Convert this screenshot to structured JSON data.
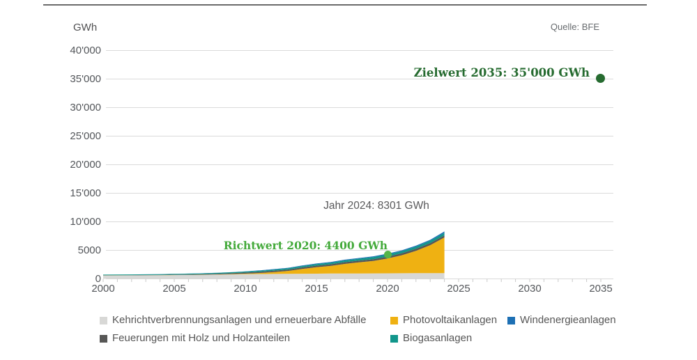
{
  "header": {
    "unit_label": "GWh",
    "source_label": "Quelle: BFE"
  },
  "annotations": {
    "zielwert": {
      "text": "Zielwert 2035: 35'000 GWh",
      "year": 2035,
      "value_gwh": 35000,
      "text_color": "#266b30",
      "dot_color": "#266b30"
    },
    "jahr_2024": {
      "text": "Jahr 2024: 8301 GWh",
      "year": 2024,
      "value_gwh": 8301,
      "text_color": "#58585a"
    },
    "richtwert": {
      "text": "Richtwert 2020: 4400 GWh",
      "year": 2020,
      "value_gwh": 4400,
      "text_color": "#44aa3b",
      "dot_color": "#56b54a"
    }
  },
  "chart_data": {
    "type": "area",
    "stacked": true,
    "ylabel": "GWh",
    "x_years": [
      2000,
      2001,
      2002,
      2003,
      2004,
      2005,
      2006,
      2007,
      2008,
      2009,
      2010,
      2011,
      2012,
      2013,
      2014,
      2015,
      2016,
      2017,
      2018,
      2019,
      2020,
      2021,
      2022,
      2023,
      2024
    ],
    "series": [
      {
        "name": "Kehrichtverbrennungsanlagen und erneuerbare Abfälle",
        "color": "#d8d8d6",
        "values": [
          590,
          600,
          610,
          620,
          640,
          660,
          680,
          700,
          740,
          780,
          820,
          850,
          870,
          890,
          905,
          920,
          935,
          945,
          955,
          965,
          975,
          985,
          995,
          1005,
          1015
        ]
      },
      {
        "name": "Photovoltaikanlagen",
        "color": "#efb112",
        "values": [
          11,
          13,
          15,
          18,
          21,
          24,
          27,
          32,
          42,
          58,
          98,
          170,
          320,
          500,
          840,
          1119,
          1333,
          1683,
          1945,
          2173,
          2599,
          3146,
          3916,
          4898,
          6238
        ]
      },
      {
        "name": "Feuerungen mit Holz und Holzanteilen",
        "color": "#575756",
        "values": [
          30,
          32,
          35,
          40,
          48,
          58,
          75,
          95,
          120,
          155,
          190,
          215,
          235,
          250,
          262,
          275,
          287,
          297,
          307,
          317,
          327,
          340,
          352,
          362,
          372
        ]
      },
      {
        "name": "Biogasanlagen",
        "color": "#11968b",
        "values": [
          112,
          114,
          116,
          119,
          122,
          126,
          131,
          140,
          150,
          160,
          167,
          177,
          192,
          212,
          242,
          270,
          292,
          312,
          332,
          352,
          367,
          382,
          397,
          412,
          427
        ]
      },
      {
        "name": "Windenergieanlagen",
        "color": "#1d70b4",
        "values": [
          3,
          5,
          5,
          5,
          8,
          8,
          15,
          16,
          19,
          23,
          37,
          70,
          85,
          90,
          100,
          110,
          108,
          132,
          121,
          146,
          147,
          150,
          155,
          170,
          249
        ]
      }
    ],
    "x_axis": {
      "min": 2000,
      "max": 2035,
      "labeled_ticks": [
        2000,
        2005,
        2010,
        2015,
        2020,
        2025,
        2030,
        2035
      ],
      "minor_tick_every_year": true
    },
    "y_axis": {
      "min": 0,
      "max": 40000,
      "tick_step": 5000,
      "tick_labels": [
        "0",
        "5000",
        "10'000",
        "15'000",
        "20'000",
        "25'000",
        "30'000",
        "35'000",
        "40'000"
      ]
    },
    "grid": "horizontal",
    "grid_color": "#dadada",
    "legend_position": "bottom"
  },
  "legend": {
    "rows": [
      [
        {
          "label": "Kehrichtverbrennungsanlagen und erneuerbare Abfälle",
          "color": "#d8d8d6"
        },
        {
          "label": "Photovoltaikanlagen",
          "color": "#efb112"
        },
        {
          "label": "Windenergieanlagen",
          "color": "#1d70b4"
        }
      ],
      [
        {
          "label": "Feuerungen mit Holz und Holzanteilen",
          "color": "#575756"
        },
        {
          "label": "Biogasanlagen",
          "color": "#11968b"
        }
      ]
    ]
  }
}
